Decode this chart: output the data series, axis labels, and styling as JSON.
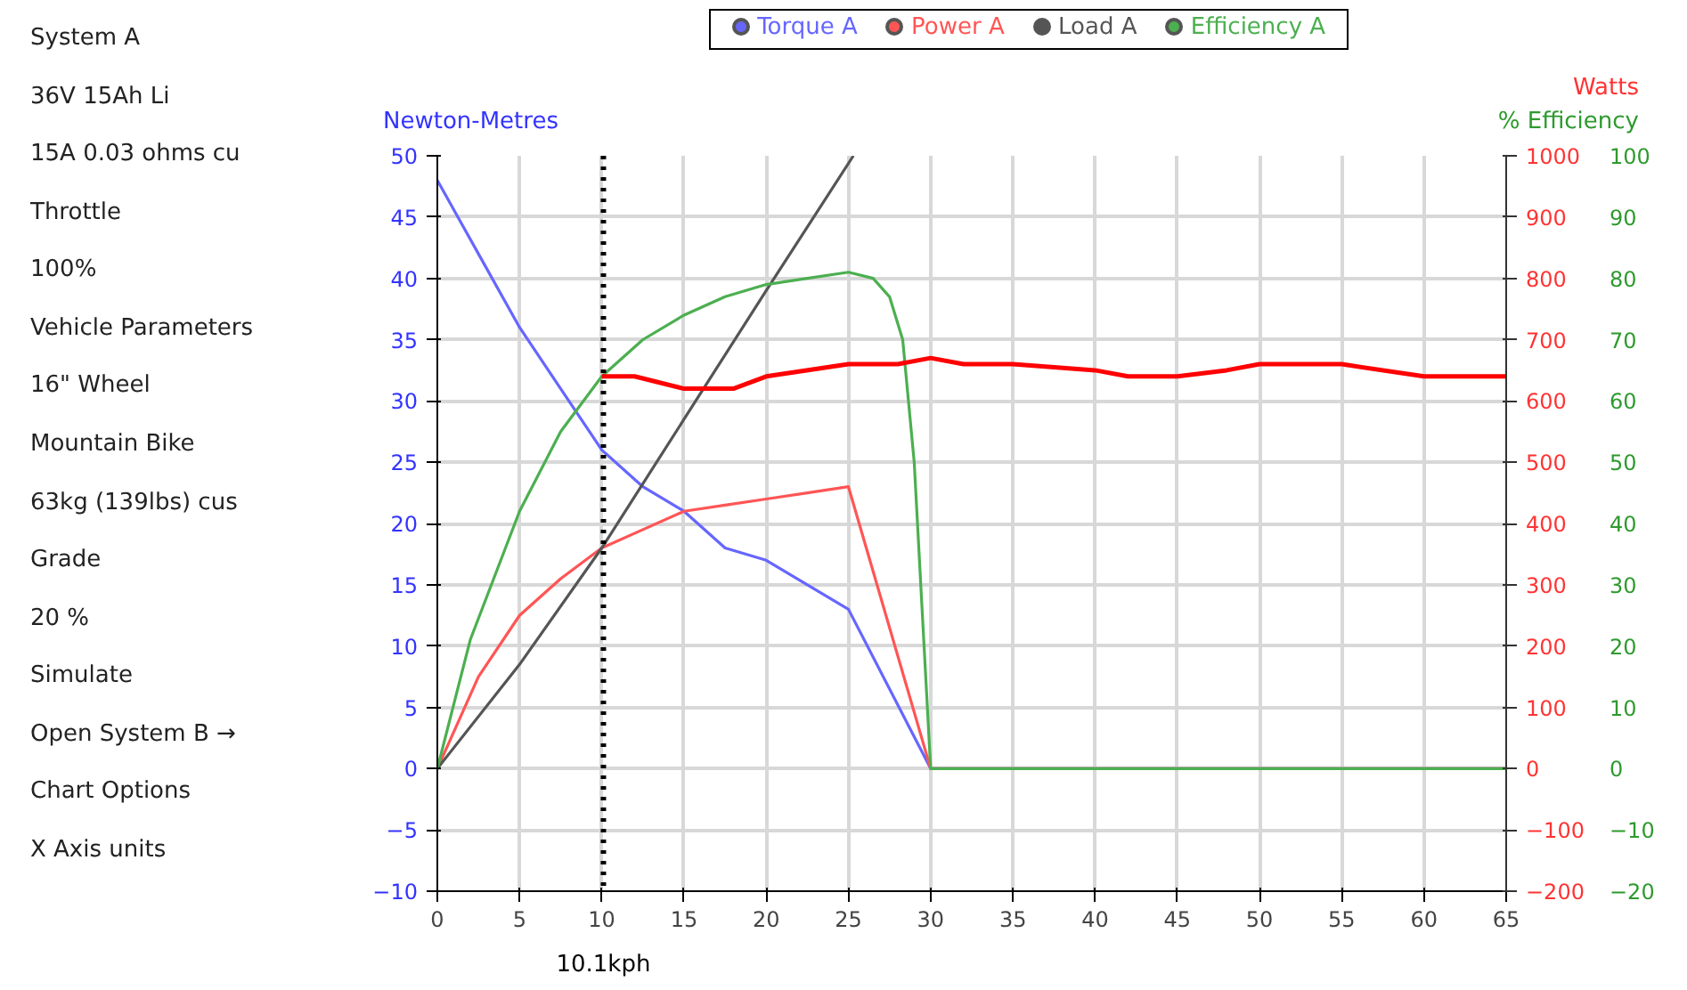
{
  "chart_data": [
    {
      "type": "other",
      "annotations": [
        "System A",
        "36V 15Ah Li",
        "15A 0.03 ohms cu",
        "Throttle",
        "100%",
        "Vehicle Parameters",
        "16\"  Wheel",
        "Mountain Bike",
        "63kg (139lbs) cus",
        "Grade",
        "20 %",
        "Simulate",
        "Open System B →",
        "Chart Options",
        "X Axis units"
      ]
    },
    {
      "type": "line",
      "ylabel": "Newton-Metres",
      "y2label": "Watts",
      "y3label": "% Efficiency",
      "xlim": [
        0,
        65
      ],
      "xticks": [
        0,
        5,
        10,
        15,
        20,
        25,
        30,
        35,
        40,
        45,
        50,
        55,
        60,
        65
      ],
      "ylim": [
        -10,
        50
      ],
      "yticks": [
        -10,
        -5,
        0,
        5,
        10,
        15,
        20,
        25,
        30,
        35,
        40,
        45,
        50
      ],
      "y2lim": [
        -200,
        1000
      ],
      "y2ticks": [
        -200,
        -100,
        0,
        100,
        200,
        300,
        400,
        500,
        600,
        700,
        800,
        900,
        1000
      ],
      "y3lim": [
        -20,
        100
      ],
      "y3ticks": [
        -20,
        -10,
        0,
        10,
        20,
        30,
        40,
        50,
        60,
        70,
        80,
        90,
        100
      ],
      "grid": true,
      "legend": "top",
      "marker": "none",
      "line_style": "solid",
      "series": [
        {
          "name": "Torque A",
          "color": "#6666ff",
          "x": [
            0,
            2.5,
            5,
            7.5,
            10,
            12.5,
            15,
            17.5,
            20,
            22.5,
            25,
            30,
            65
          ],
          "values": [
            48,
            42,
            36,
            31,
            26,
            23,
            21,
            18,
            17,
            15,
            13,
            0,
            0
          ]
        },
        {
          "name": "Power A",
          "color": "#ff5555",
          "axis": "y2",
          "x": [
            0,
            2.5,
            5,
            7.5,
            10,
            12.5,
            15,
            17.5,
            20,
            22.5,
            25,
            30,
            65
          ],
          "values": [
            0,
            150,
            250,
            310,
            360,
            390,
            420,
            430,
            440,
            450,
            460,
            0,
            0
          ]
        },
        {
          "name": "Load A",
          "color": "#555555",
          "axis": "y2",
          "x": [
            0,
            5,
            10,
            15,
            20,
            25.3
          ],
          "values": [
            0,
            170,
            360,
            570,
            780,
            1000
          ]
        },
        {
          "name": "Efficiency A",
          "color": "#4caf50",
          "axis": "y3",
          "x": [
            0,
            2,
            5,
            7.5,
            10,
            12.5,
            15,
            17.5,
            20,
            22.5,
            25,
            26.5,
            27.5,
            28.3,
            29,
            29.5,
            30,
            65
          ],
          "values": [
            0,
            21,
            42,
            55,
            64,
            70,
            74,
            77,
            79,
            80,
            81,
            80,
            77,
            70,
            50,
            25,
            0,
            0
          ]
        },
        {
          "color": "#ff0000",
          "axis": "y2",
          "x": [
            10,
            12,
            15,
            17,
            18,
            20,
            25,
            28,
            30,
            32,
            35,
            40,
            42,
            45,
            48,
            50,
            52,
            55,
            60,
            63,
            65
          ],
          "values": [
            640,
            640,
            620,
            620,
            620,
            640,
            660,
            660,
            670,
            660,
            660,
            650,
            640,
            640,
            650,
            660,
            660,
            660,
            640,
            640,
            640
          ]
        }
      ],
      "ref_lines": [
        {
          "axis": "x",
          "value": 10.1,
          "label": "10.1kph",
          "color": "#000000",
          "line_style": "dotted"
        }
      ]
    }
  ]
}
